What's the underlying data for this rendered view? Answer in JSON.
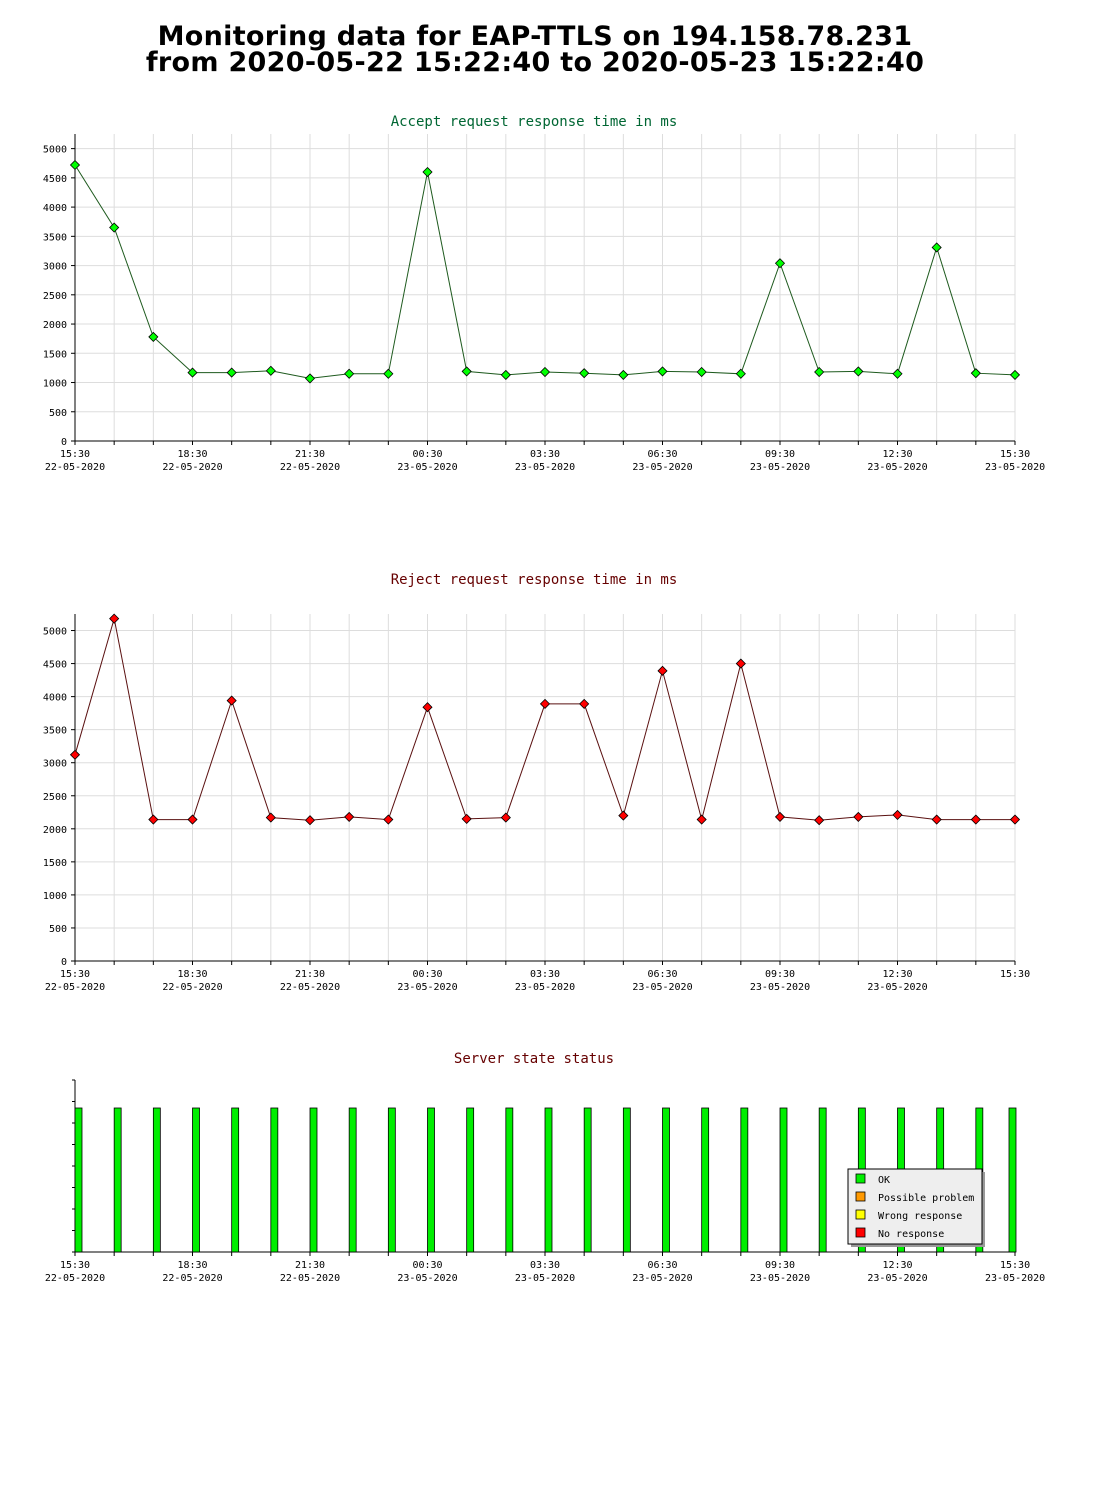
{
  "header": {
    "line1": "Monitoring data for EAP-TTLS on 194.158.78.231",
    "line2": "from 2020-05-22 15:22:40 to 2020-05-23 15:22:40"
  },
  "chart_data": [
    {
      "type": "line",
      "title": "Accept request response time in ms",
      "title_color": "#006633",
      "line_color": "#1e5a1e",
      "marker_color": "#00ff00",
      "x": [
        "15:30",
        "16:30",
        "17:30",
        "18:30",
        "19:30",
        "20:30",
        "21:30",
        "22:30",
        "23:30",
        "00:30",
        "01:30",
        "02:30",
        "03:30",
        "04:30",
        "05:30",
        "06:30",
        "07:30",
        "08:30",
        "09:30",
        "10:30",
        "11:30",
        "12:30",
        "13:30",
        "14:30",
        "15:30"
      ],
      "values": [
        4720,
        3650,
        1780,
        1170,
        1170,
        1200,
        1070,
        1150,
        1150,
        4600,
        1190,
        1130,
        1180,
        1160,
        1130,
        1190,
        1180,
        1150,
        3040,
        1180,
        1190,
        1150,
        3310,
        1160,
        1130
      ],
      "ylim": [
        0,
        5250
      ],
      "yticks": [
        0,
        500,
        1000,
        1500,
        2000,
        2500,
        3000,
        3500,
        4000,
        4500,
        5000
      ],
      "xtick_labels": [
        {
          "time": "15:30",
          "date": "22-05-2020"
        },
        {
          "time": "18:30",
          "date": "22-05-2020"
        },
        {
          "time": "21:30",
          "date": "22-05-2020"
        },
        {
          "time": "00:30",
          "date": "23-05-2020"
        },
        {
          "time": "03:30",
          "date": "23-05-2020"
        },
        {
          "time": "06:30",
          "date": "23-05-2020"
        },
        {
          "time": "09:30",
          "date": "23-05-2020"
        },
        {
          "time": "12:30",
          "date": "23-05-2020"
        },
        {
          "time": "15:30",
          "date": "23-05-2020"
        }
      ],
      "grid": true
    },
    {
      "type": "line",
      "title": "Reject request response time in ms",
      "title_color": "#660000",
      "line_color": "#5a1010",
      "marker_color": "#ff0000",
      "x": [
        "15:30",
        "16:30",
        "17:30",
        "18:30",
        "19:30",
        "20:30",
        "21:30",
        "22:30",
        "23:30",
        "00:30",
        "01:30",
        "02:30",
        "03:30",
        "04:30",
        "05:30",
        "06:30",
        "07:30",
        "08:30",
        "09:30",
        "10:30",
        "11:30",
        "12:30",
        "13:30",
        "14:30",
        "15:30"
      ],
      "values": [
        3120,
        5180,
        2140,
        2140,
        3940,
        2170,
        2130,
        2180,
        2140,
        3840,
        2150,
        2170,
        3890,
        3890,
        2200,
        4390,
        2140,
        4500,
        2180,
        2130,
        2180,
        2210,
        2140,
        2140,
        2140
      ],
      "ylim": [
        0,
        5250
      ],
      "yticks": [
        0,
        500,
        1000,
        1500,
        2000,
        2500,
        3000,
        3500,
        4000,
        4500,
        5000
      ],
      "xtick_labels": [
        {
          "time": "15:30",
          "date": "22-05-2020"
        },
        {
          "time": "18:30",
          "date": "22-05-2020"
        },
        {
          "time": "21:30",
          "date": "22-05-2020"
        },
        {
          "time": "00:30",
          "date": "23-05-2020"
        },
        {
          "time": "03:30",
          "date": "23-05-2020"
        },
        {
          "time": "06:30",
          "date": "23-05-2020"
        },
        {
          "time": "09:30",
          "date": "23-05-2020"
        },
        {
          "time": "12:30",
          "date": "23-05-2020"
        },
        {
          "time": "15:30",
          "date": ""
        }
      ],
      "grid": true
    },
    {
      "type": "bar",
      "title": "Server state status",
      "title_color": "#660000",
      "bar_color": "#00ee00",
      "x": [
        "15:30",
        "16:30",
        "17:30",
        "18:30",
        "19:30",
        "20:30",
        "21:30",
        "22:30",
        "23:30",
        "00:30",
        "01:30",
        "02:30",
        "03:30",
        "04:30",
        "05:30",
        "06:30",
        "07:30",
        "08:30",
        "09:30",
        "10:30",
        "11:30",
        "12:30",
        "13:30",
        "14:30",
        "15:30"
      ],
      "states": [
        "OK",
        "OK",
        "OK",
        "OK",
        "OK",
        "OK",
        "OK",
        "OK",
        "OK",
        "OK",
        "OK",
        "OK",
        "OK",
        "OK",
        "OK",
        "OK",
        "OK",
        "OK",
        "OK",
        "OK",
        "OK",
        "OK",
        "OK",
        "OK",
        "OK"
      ],
      "xtick_labels": [
        {
          "time": "15:30",
          "date": "22-05-2020"
        },
        {
          "time": "18:30",
          "date": "22-05-2020"
        },
        {
          "time": "21:30",
          "date": "22-05-2020"
        },
        {
          "time": "00:30",
          "date": "23-05-2020"
        },
        {
          "time": "03:30",
          "date": "23-05-2020"
        },
        {
          "time": "06:30",
          "date": "23-05-2020"
        },
        {
          "time": "09:30",
          "date": "23-05-2020"
        },
        {
          "time": "12:30",
          "date": "23-05-2020"
        },
        {
          "time": "15:30",
          "date": "23-05-2020"
        }
      ],
      "legend": [
        {
          "label": "OK",
          "color": "#00ee00"
        },
        {
          "label": "Possible problem",
          "color": "#ff9900"
        },
        {
          "label": "Wrong response",
          "color": "#ffff00"
        },
        {
          "label": "No response",
          "color": "#ff0000"
        }
      ],
      "legend_position": "bottom-right"
    }
  ]
}
